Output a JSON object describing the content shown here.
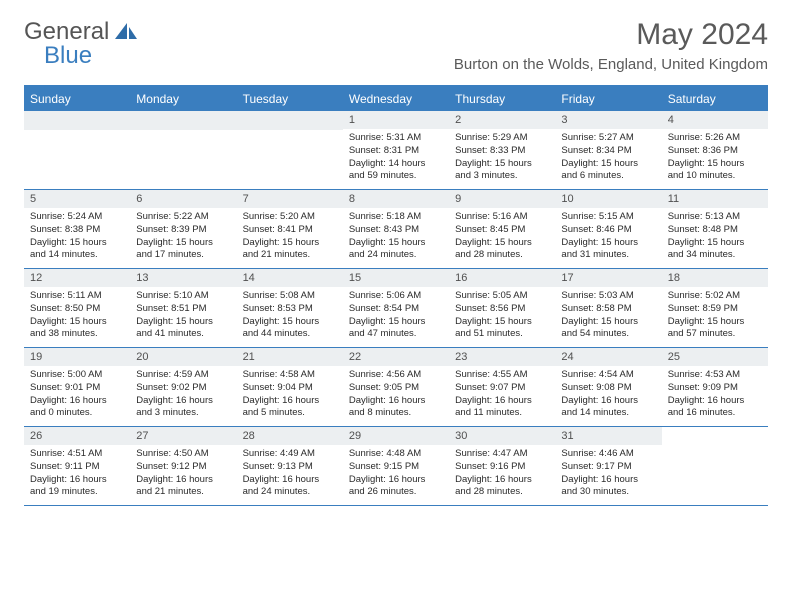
{
  "logo": {
    "text1": "General",
    "text2": "Blue"
  },
  "title": "May 2024",
  "location": "Burton on the Wolds, England, United Kingdom",
  "weekdays": [
    "Sunday",
    "Monday",
    "Tuesday",
    "Wednesday",
    "Thursday",
    "Friday",
    "Saturday"
  ],
  "colors": {
    "accent": "#3a7ebf",
    "headerBg": "#3a7ebf",
    "dayNumBg": "#eceff1"
  },
  "weeks": [
    [
      {
        "blank": true
      },
      {
        "blank": true
      },
      {
        "blank": true
      },
      {
        "num": "1",
        "sunrise": "Sunrise: 5:31 AM",
        "sunset": "Sunset: 8:31 PM",
        "daylight": "Daylight: 14 hours and 59 minutes."
      },
      {
        "num": "2",
        "sunrise": "Sunrise: 5:29 AM",
        "sunset": "Sunset: 8:33 PM",
        "daylight": "Daylight: 15 hours and 3 minutes."
      },
      {
        "num": "3",
        "sunrise": "Sunrise: 5:27 AM",
        "sunset": "Sunset: 8:34 PM",
        "daylight": "Daylight: 15 hours and 6 minutes."
      },
      {
        "num": "4",
        "sunrise": "Sunrise: 5:26 AM",
        "sunset": "Sunset: 8:36 PM",
        "daylight": "Daylight: 15 hours and 10 minutes."
      }
    ],
    [
      {
        "num": "5",
        "sunrise": "Sunrise: 5:24 AM",
        "sunset": "Sunset: 8:38 PM",
        "daylight": "Daylight: 15 hours and 14 minutes."
      },
      {
        "num": "6",
        "sunrise": "Sunrise: 5:22 AM",
        "sunset": "Sunset: 8:39 PM",
        "daylight": "Daylight: 15 hours and 17 minutes."
      },
      {
        "num": "7",
        "sunrise": "Sunrise: 5:20 AM",
        "sunset": "Sunset: 8:41 PM",
        "daylight": "Daylight: 15 hours and 21 minutes."
      },
      {
        "num": "8",
        "sunrise": "Sunrise: 5:18 AM",
        "sunset": "Sunset: 8:43 PM",
        "daylight": "Daylight: 15 hours and 24 minutes."
      },
      {
        "num": "9",
        "sunrise": "Sunrise: 5:16 AM",
        "sunset": "Sunset: 8:45 PM",
        "daylight": "Daylight: 15 hours and 28 minutes."
      },
      {
        "num": "10",
        "sunrise": "Sunrise: 5:15 AM",
        "sunset": "Sunset: 8:46 PM",
        "daylight": "Daylight: 15 hours and 31 minutes."
      },
      {
        "num": "11",
        "sunrise": "Sunrise: 5:13 AM",
        "sunset": "Sunset: 8:48 PM",
        "daylight": "Daylight: 15 hours and 34 minutes."
      }
    ],
    [
      {
        "num": "12",
        "sunrise": "Sunrise: 5:11 AM",
        "sunset": "Sunset: 8:50 PM",
        "daylight": "Daylight: 15 hours and 38 minutes."
      },
      {
        "num": "13",
        "sunrise": "Sunrise: 5:10 AM",
        "sunset": "Sunset: 8:51 PM",
        "daylight": "Daylight: 15 hours and 41 minutes."
      },
      {
        "num": "14",
        "sunrise": "Sunrise: 5:08 AM",
        "sunset": "Sunset: 8:53 PM",
        "daylight": "Daylight: 15 hours and 44 minutes."
      },
      {
        "num": "15",
        "sunrise": "Sunrise: 5:06 AM",
        "sunset": "Sunset: 8:54 PM",
        "daylight": "Daylight: 15 hours and 47 minutes."
      },
      {
        "num": "16",
        "sunrise": "Sunrise: 5:05 AM",
        "sunset": "Sunset: 8:56 PM",
        "daylight": "Daylight: 15 hours and 51 minutes."
      },
      {
        "num": "17",
        "sunrise": "Sunrise: 5:03 AM",
        "sunset": "Sunset: 8:58 PM",
        "daylight": "Daylight: 15 hours and 54 minutes."
      },
      {
        "num": "18",
        "sunrise": "Sunrise: 5:02 AM",
        "sunset": "Sunset: 8:59 PM",
        "daylight": "Daylight: 15 hours and 57 minutes."
      }
    ],
    [
      {
        "num": "19",
        "sunrise": "Sunrise: 5:00 AM",
        "sunset": "Sunset: 9:01 PM",
        "daylight": "Daylight: 16 hours and 0 minutes."
      },
      {
        "num": "20",
        "sunrise": "Sunrise: 4:59 AM",
        "sunset": "Sunset: 9:02 PM",
        "daylight": "Daylight: 16 hours and 3 minutes."
      },
      {
        "num": "21",
        "sunrise": "Sunrise: 4:58 AM",
        "sunset": "Sunset: 9:04 PM",
        "daylight": "Daylight: 16 hours and 5 minutes."
      },
      {
        "num": "22",
        "sunrise": "Sunrise: 4:56 AM",
        "sunset": "Sunset: 9:05 PM",
        "daylight": "Daylight: 16 hours and 8 minutes."
      },
      {
        "num": "23",
        "sunrise": "Sunrise: 4:55 AM",
        "sunset": "Sunset: 9:07 PM",
        "daylight": "Daylight: 16 hours and 11 minutes."
      },
      {
        "num": "24",
        "sunrise": "Sunrise: 4:54 AM",
        "sunset": "Sunset: 9:08 PM",
        "daylight": "Daylight: 16 hours and 14 minutes."
      },
      {
        "num": "25",
        "sunrise": "Sunrise: 4:53 AM",
        "sunset": "Sunset: 9:09 PM",
        "daylight": "Daylight: 16 hours and 16 minutes."
      }
    ],
    [
      {
        "num": "26",
        "sunrise": "Sunrise: 4:51 AM",
        "sunset": "Sunset: 9:11 PM",
        "daylight": "Daylight: 16 hours and 19 minutes."
      },
      {
        "num": "27",
        "sunrise": "Sunrise: 4:50 AM",
        "sunset": "Sunset: 9:12 PM",
        "daylight": "Daylight: 16 hours and 21 minutes."
      },
      {
        "num": "28",
        "sunrise": "Sunrise: 4:49 AM",
        "sunset": "Sunset: 9:13 PM",
        "daylight": "Daylight: 16 hours and 24 minutes."
      },
      {
        "num": "29",
        "sunrise": "Sunrise: 4:48 AM",
        "sunset": "Sunset: 9:15 PM",
        "daylight": "Daylight: 16 hours and 26 minutes."
      },
      {
        "num": "30",
        "sunrise": "Sunrise: 4:47 AM",
        "sunset": "Sunset: 9:16 PM",
        "daylight": "Daylight: 16 hours and 28 minutes."
      },
      {
        "num": "31",
        "sunrise": "Sunrise: 4:46 AM",
        "sunset": "Sunset: 9:17 PM",
        "daylight": "Daylight: 16 hours and 30 minutes."
      },
      {
        "blank": true,
        "noStripe": true
      }
    ]
  ]
}
